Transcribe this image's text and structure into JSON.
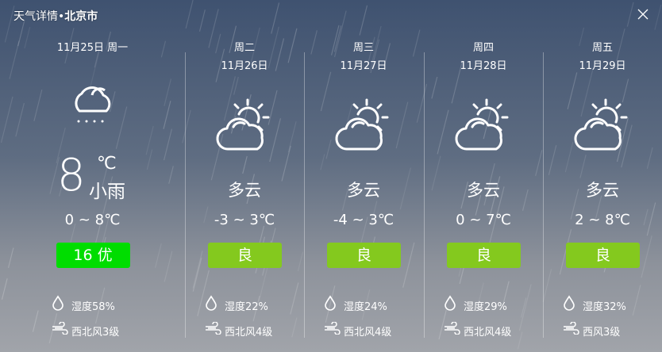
{
  "header": {
    "title_prefix": "天气详情•",
    "city": "北京市",
    "close_icon": "close-icon"
  },
  "today": {
    "date": "11月25日 周一",
    "temp": "8",
    "unit": "℃",
    "condition": "小雨",
    "range": "0 ~ 8℃",
    "aqi": "16 优",
    "aqi_color": "#00dd00",
    "humidity": "湿度58%",
    "wind": "西北风3级",
    "icon": "rain-cloud-icon"
  },
  "forecast": [
    {
      "day": "周二",
      "date": "11月26日",
      "condition": "多云",
      "range": "-3 ~ 3℃",
      "aqi": "良",
      "humidity": "湿度22%",
      "wind": "西北风4级"
    },
    {
      "day": "周三",
      "date": "11月27日",
      "condition": "多云",
      "range": "-4 ~ 3℃",
      "aqi": "良",
      "humidity": "湿度24%",
      "wind": "西北风4级"
    },
    {
      "day": "周四",
      "date": "11月28日",
      "condition": "多云",
      "range": "0 ~ 7℃",
      "aqi": "良",
      "humidity": "湿度29%",
      "wind": "西北风4级"
    },
    {
      "day": "周五",
      "date": "11月29日",
      "condition": "多云",
      "range": "2 ~ 8℃",
      "aqi": "良",
      "humidity": "湿度32%",
      "wind": "西风3级"
    }
  ],
  "colors": {
    "aqi_good": "#84c91e",
    "aqi_excellent": "#00dd00"
  }
}
